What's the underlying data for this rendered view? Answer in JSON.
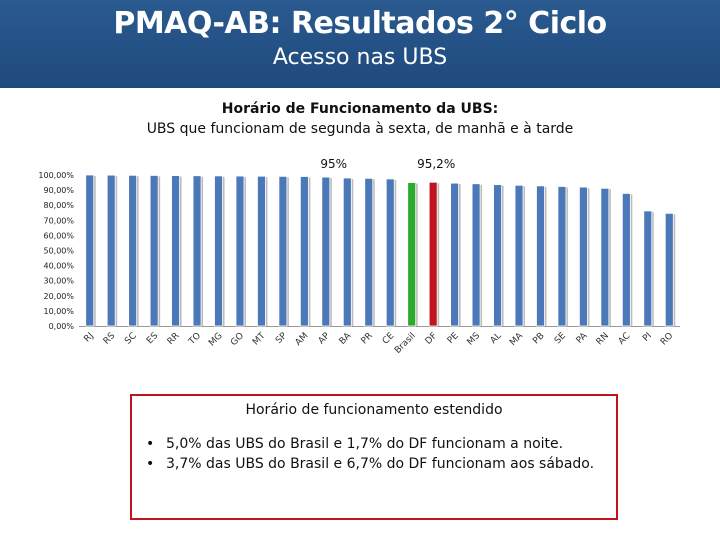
{
  "header": {
    "title": "PMAQ-AB: Resultados 2° Ciclo",
    "subtitle": "Acesso nas UBS"
  },
  "chart_title": {
    "line1": "Horário de Funcionamento da UBS:",
    "line2": "UBS que funcionam de segunda à sexta, de manhã e à tarde"
  },
  "chart_data": {
    "type": "bar",
    "categories": [
      "RJ",
      "RS",
      "SC",
      "ES",
      "RR",
      "TO",
      "MG",
      "GO",
      "MT",
      "SP",
      "AM",
      "AP",
      "BA",
      "PR",
      "CE",
      "Brasil",
      "DF",
      "PE",
      "MS",
      "AL",
      "MA",
      "PB",
      "SE",
      "PA",
      "RN",
      "AC",
      "PI",
      "RO"
    ],
    "values": [
      100,
      99.9,
      99.8,
      99.7,
      99.6,
      99.5,
      99.4,
      99.3,
      99.2,
      99.1,
      99.0,
      98.6,
      98.0,
      97.8,
      97.4,
      95.0,
      95.2,
      94.6,
      94.2,
      93.6,
      93.2,
      92.8,
      92.4,
      92.0,
      91.2,
      87.8,
      76.2,
      74.6
    ],
    "highlight": {
      "Brasil": "#2eaa2e",
      "DF": "#c0141e"
    },
    "bar_color": "#4a78b8",
    "annotations": [
      {
        "category": "Brasil",
        "text": "95%"
      },
      {
        "category": "DF",
        "text": "95,2%"
      }
    ],
    "yticks": [
      "0,00%",
      "10,00%",
      "20,00%",
      "30,00%",
      "40,00%",
      "50,00%",
      "60,00%",
      "70,00%",
      "80,00%",
      "90,00%",
      "100,00%"
    ],
    "ylim": [
      0,
      100
    ],
    "grid": false,
    "legend": "none"
  },
  "note": {
    "title": "Horário de funcionamento estendido",
    "bullet": "•",
    "items": [
      "5,0% das UBS do Brasil e 1,7% do DF funcionam a noite.",
      "3,7% das UBS do Brasil e 6,7% do DF funcionam aos sábado."
    ],
    "border_color": "#c0141e"
  }
}
